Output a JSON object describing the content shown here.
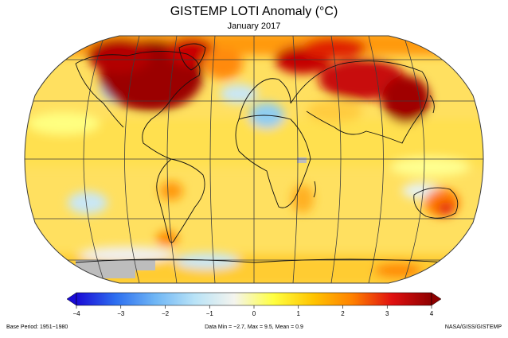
{
  "header": {
    "title": "GISTEMP LOTI Anomaly (°C)",
    "subtitle": "January 2017"
  },
  "colorbar": {
    "ticks": [
      "−4",
      "−3",
      "−2",
      "−1",
      "0",
      "1",
      "2",
      "3",
      "4"
    ],
    "min": -4,
    "max": 4,
    "colors": [
      "#1a0bd6",
      "#2d6ff0",
      "#6fb6f5",
      "#b9e3f7",
      "#f4f4ee",
      "#ffff40",
      "#ffc400",
      "#ff8000",
      "#e01010",
      "#8e0000"
    ]
  },
  "footer": {
    "base_period": "Base Period: 1951−1980",
    "stats": "Data Min = −2.7, Max = 9.5, Mean = 0.9",
    "credit": "NASA/GISS/GISTEMP"
  },
  "colors": {
    "ocean_base": "#ffe060",
    "grid": "#3c3c3c",
    "land_outline": "#111111",
    "no_data": "#bdbdbd"
  }
}
